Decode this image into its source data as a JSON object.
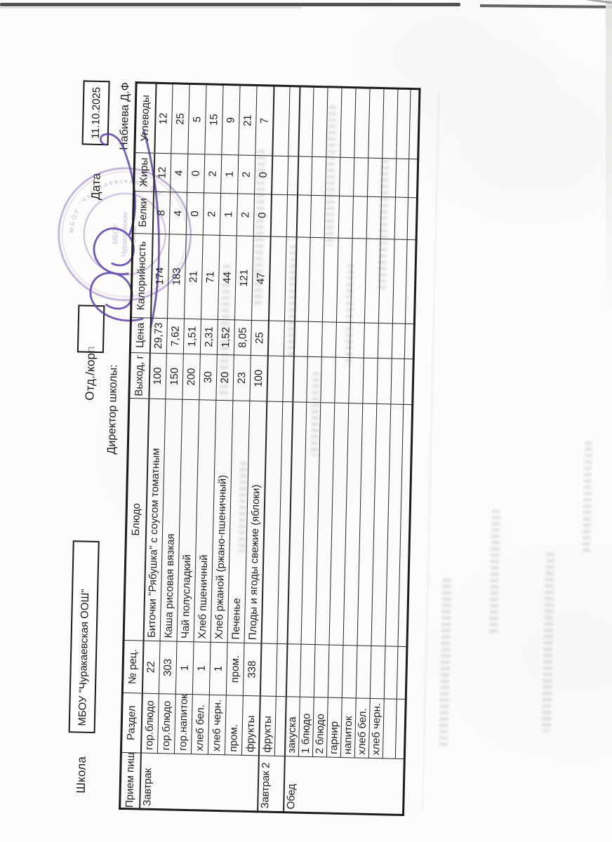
{
  "page": {
    "school_label": "Школа",
    "school_name": "МБОУ \"Чуракаевская ООШ\"",
    "dept_label": "Отд./корп",
    "dept_value": "",
    "date_label": "Дата",
    "date_value": "11.10.2025",
    "director_label": "Директор школы:",
    "director_name": "Набиева Д.Ф",
    "stamp": {
      "color": "#7050a8",
      "ring_text": "МБОУ \"Чуракаевская ООШ\"",
      "center_line1": "МБОУ",
      "center_line2": "Чуракаевская",
      "center_line3": "ООШ",
      "legible": false
    }
  },
  "table": {
    "headers": [
      "Прием пищи",
      "Раздел",
      "№ рец.",
      "Блюдо",
      "Выход, г",
      "Цена",
      "Калорийность",
      "Белки",
      "Жиры",
      "Углеводы"
    ],
    "sections": [
      {
        "meal": "Завтрак",
        "rows": [
          {
            "razdel": "гор.блюдо",
            "rec": "22",
            "dish": "Биточки \"Рябушка\" с соусом томатным",
            "out": "100",
            "price": "29,73",
            "kcal": "174",
            "protein": "8",
            "fat": "12",
            "carbs": "12"
          },
          {
            "razdel": "гор.блюдо",
            "rec": "303",
            "dish": "Каша рисовая вязкая",
            "out": "150",
            "price": "7,62",
            "kcal": "183",
            "protein": "4",
            "fat": "4",
            "carbs": "25"
          },
          {
            "razdel": "гор.напиток",
            "rec": "1",
            "dish": "Чай полусладкий",
            "out": "200",
            "price": "1,51",
            "kcal": "21",
            "protein": "0",
            "fat": "0",
            "carbs": "5"
          },
          {
            "razdel": "хлеб бел.",
            "rec": "1",
            "dish": "Хлеб пшеничный",
            "out": "30",
            "price": "2,31",
            "kcal": "71",
            "protein": "2",
            "fat": "2",
            "carbs": "15"
          },
          {
            "razdel": "хлеб черн.",
            "rec": "1",
            "dish": "Хлеб ржаной (ржано-пшеничный)",
            "out": "20",
            "price": "1,52",
            "kcal": "44",
            "protein": "1",
            "fat": "1",
            "carbs": "9"
          },
          {
            "razdel": "пром.",
            "rec": "пром.",
            "dish": "Печенье",
            "out": "23",
            "price": "8,05",
            "kcal": "121",
            "protein": "2",
            "fat": "2",
            "carbs": "21"
          },
          {
            "razdel": "фрукты",
            "rec": "338",
            "dish": "Плоды и ягоды свежие (яблоки)",
            "out": "100",
            "price": "25",
            "kcal": "47",
            "protein": "0",
            "fat": "0",
            "carbs": "7"
          }
        ]
      },
      {
        "meal": "Завтрак 2",
        "rows": [
          {
            "razdel": "фрукты",
            "rec": "",
            "dish": "",
            "out": "",
            "price": "",
            "kcal": "",
            "protein": "",
            "fat": "",
            "carbs": ""
          },
          {
            "razdel": "",
            "rec": "",
            "dish": "",
            "out": "",
            "price": "",
            "kcal": "",
            "protein": "",
            "fat": "",
            "carbs": ""
          }
        ]
      },
      {
        "meal": "Обед",
        "rows": [
          {
            "razdel": "закуска",
            "rec": "",
            "dish": "",
            "out": "",
            "price": "",
            "kcal": "",
            "protein": "",
            "fat": "",
            "carbs": ""
          },
          {
            "razdel": "1 блюдо",
            "rec": "",
            "dish": "",
            "out": "",
            "price": "",
            "kcal": "",
            "protein": "",
            "fat": "",
            "carbs": ""
          },
          {
            "razdel": "2 блюдо",
            "rec": "",
            "dish": "",
            "out": "",
            "price": "",
            "kcal": "",
            "protein": "",
            "fat": "",
            "carbs": ""
          },
          {
            "razdel": "гарнир",
            "rec": "",
            "dish": "",
            "out": "",
            "price": "",
            "kcal": "",
            "protein": "",
            "fat": "",
            "carbs": ""
          },
          {
            "razdel": "напиток",
            "rec": "",
            "dish": "",
            "out": "",
            "price": "",
            "kcal": "",
            "protein": "",
            "fat": "",
            "carbs": ""
          },
          {
            "razdel": "хлеб бел.",
            "rec": "",
            "dish": "",
            "out": "",
            "price": "",
            "kcal": "",
            "protein": "",
            "fat": "",
            "carbs": ""
          },
          {
            "razdel": "хлеб черн.",
            "rec": "",
            "dish": "",
            "out": "",
            "price": "",
            "kcal": "",
            "protein": "",
            "fat": "",
            "carbs": ""
          },
          {
            "razdel": "",
            "rec": "",
            "dish": "",
            "out": "",
            "price": "",
            "kcal": "",
            "protein": "",
            "fat": "",
            "carbs": ""
          },
          {
            "razdel": "",
            "rec": "",
            "dish": "",
            "out": "",
            "price": "",
            "kcal": "",
            "protein": "",
            "fat": "",
            "carbs": ""
          }
        ]
      }
    ]
  },
  "colors": {
    "stamp": "#7050a8",
    "signature": "#5b3fa5",
    "ink": "#1d1d1d",
    "paper": "#fcfcfa"
  }
}
